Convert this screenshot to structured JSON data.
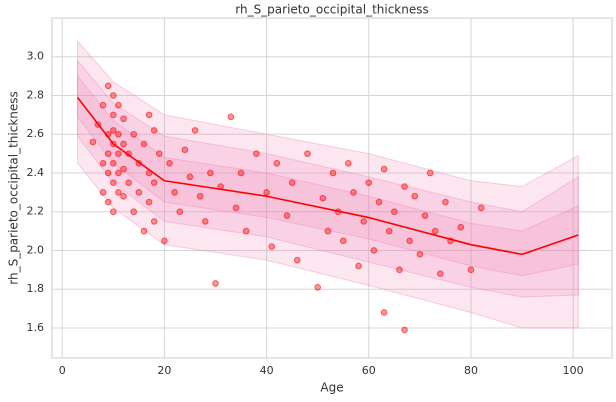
{
  "chart_data": {
    "type": "scatter",
    "title": "rh_S_parieto_occipital_thickness",
    "xlabel": "Age",
    "ylabel": "rh_S_parieto_occipital_thickness",
    "xlim": [
      -2,
      107.6
    ],
    "ylim": [
      1.445,
      3.2
    ],
    "xticks": [
      0,
      20,
      40,
      60,
      80,
      100
    ],
    "yticks": [
      1.6,
      1.8,
      {
        "value": 2,
        "label": "2.0"
      },
      2.2,
      2.4,
      2.6,
      2.8,
      {
        "value": 3,
        "label": "3.0"
      }
    ],
    "grid": true,
    "point_color": "#ff0000",
    "line_color": "#ff0000",
    "band_color": "#f07ab0",
    "points": {
      "x": [
        6,
        7,
        8,
        8,
        8,
        9,
        9,
        9,
        9,
        9,
        10,
        10,
        10,
        10,
        10,
        10,
        10,
        11,
        11,
        11,
        11,
        11,
        12,
        12,
        12,
        12,
        13,
        13,
        14,
        14,
        15,
        15,
        16,
        16,
        17,
        17,
        17,
        18,
        18,
        18,
        19,
        20,
        21,
        22,
        23,
        24,
        25,
        26,
        27,
        28,
        29,
        30,
        31,
        33,
        34,
        35,
        36,
        38,
        40,
        41,
        42,
        44,
        45,
        46,
        48,
        50,
        51,
        52,
        53,
        54,
        55,
        56,
        57,
        58,
        59,
        60,
        61,
        62,
        63,
        63,
        64,
        65,
        66,
        67,
        67,
        68,
        69,
        70,
        71,
        72,
        73,
        74,
        75,
        76,
        78,
        80,
        82
      ],
      "y": [
        2.56,
        2.65,
        2.45,
        2.75,
        2.3,
        2.85,
        2.6,
        2.5,
        2.4,
        2.25,
        2.8,
        2.7,
        2.62,
        2.55,
        2.45,
        2.35,
        2.2,
        2.75,
        2.6,
        2.5,
        2.4,
        2.3,
        2.68,
        2.55,
        2.42,
        2.28,
        2.5,
        2.35,
        2.6,
        2.2,
        2.45,
        2.3,
        2.55,
        2.1,
        2.7,
        2.4,
        2.25,
        2.62,
        2.35,
        2.15,
        2.5,
        2.05,
        2.45,
        2.3,
        2.2,
        2.52,
        2.38,
        2.62,
        2.28,
        2.15,
        2.4,
        1.83,
        2.33,
        2.69,
        2.22,
        2.4,
        2.1,
        2.5,
        2.3,
        2.02,
        2.45,
        2.18,
        2.35,
        1.95,
        2.5,
        1.81,
        2.27,
        2.1,
        2.4,
        2.2,
        2.05,
        2.45,
        2.3,
        1.92,
        2.15,
        2.35,
        2.0,
        2.25,
        1.68,
        2.42,
        2.1,
        2.2,
        1.9,
        1.59,
        2.33,
        2.05,
        2.28,
        1.98,
        2.18,
        2.4,
        2.1,
        1.88,
        2.25,
        2.05,
        2.12,
        1.9,
        2.22
      ]
    },
    "x": [
      3,
      10,
      20,
      40,
      60,
      80,
      90,
      101
    ],
    "median": [
      2.79,
      2.55,
      2.36,
      2.28,
      2.17,
      2.03,
      1.98,
      2.08
    ],
    "bands": [
      {
        "lower": [
          2.45,
          2.22,
          2.03,
          1.95,
          1.82,
          1.68,
          1.6,
          1.6
        ],
        "upper": [
          3.08,
          2.87,
          2.7,
          2.6,
          2.5,
          2.36,
          2.33,
          2.49
        ]
      },
      {
        "lower": [
          2.59,
          2.35,
          2.15,
          2.07,
          1.94,
          1.81,
          1.76,
          1.77
        ],
        "upper": [
          2.98,
          2.76,
          2.59,
          2.5,
          2.38,
          2.25,
          2.2,
          2.38
        ]
      },
      {
        "lower": [
          2.69,
          2.45,
          2.25,
          2.17,
          2.06,
          1.92,
          1.87,
          1.93
        ],
        "upper": [
          2.9,
          2.67,
          2.48,
          2.4,
          2.28,
          2.14,
          2.1,
          2.23
        ]
      }
    ]
  }
}
